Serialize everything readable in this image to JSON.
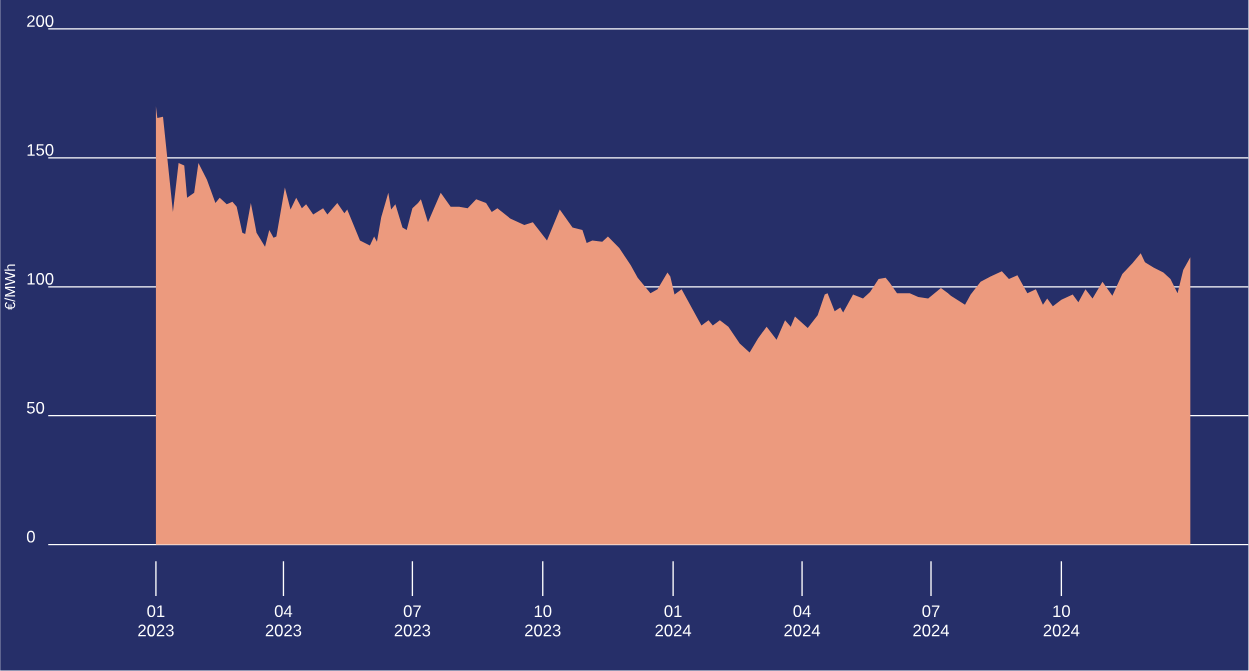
{
  "chart_data": {
    "type": "area",
    "ylabel": "€/MWh",
    "color": "#ec9a7e",
    "grid": "y",
    "ylim": [
      0,
      200
    ],
    "yticks": [
      0,
      50,
      100,
      150,
      200
    ],
    "xlim": [
      "2022-10-17",
      "2025-02-10"
    ],
    "xticks": [
      {
        "value": "2023-01-01",
        "label": "01 2023"
      },
      {
        "value": "2023-04-01",
        "label": "04 2023"
      },
      {
        "value": "2023-07-01",
        "label": "07 2023"
      },
      {
        "value": "2023-10-01",
        "label": "10 2023"
      },
      {
        "value": "2024-01-01",
        "label": "01 2024"
      },
      {
        "value": "2024-04-01",
        "label": "04 2024"
      },
      {
        "value": "2024-07-01",
        "label": "07 2024"
      },
      {
        "value": "2024-10-01",
        "label": "10 2024"
      }
    ],
    "x": [
      "2023-01-01",
      "2023-01-02",
      "2023-01-06",
      "2023-01-13",
      "2023-01-17",
      "2023-01-21",
      "2023-01-23",
      "2023-01-28",
      "2023-01-31",
      "2023-02-06",
      "2023-02-12",
      "2023-02-15",
      "2023-02-20",
      "2023-02-24",
      "2023-02-27",
      "2023-03-03",
      "2023-03-05",
      "2023-03-09",
      "2023-03-13",
      "2023-03-19",
      "2023-03-22",
      "2023-03-25",
      "2023-03-27",
      "2023-04-02",
      "2023-04-06",
      "2023-04-10",
      "2023-04-14",
      "2023-04-17",
      "2023-04-22",
      "2023-04-29",
      "2023-05-02",
      "2023-05-09",
      "2023-05-14",
      "2023-05-16",
      "2023-05-25",
      "2023-06-01",
      "2023-06-04",
      "2023-06-06",
      "2023-06-09",
      "2023-06-14",
      "2023-06-16",
      "2023-06-19",
      "2023-06-24",
      "2023-06-27",
      "2023-07-01",
      "2023-07-05",
      "2023-07-07",
      "2023-07-12",
      "2023-07-21",
      "2023-07-28",
      "2023-08-03",
      "2023-08-09",
      "2023-08-15",
      "2023-08-22",
      "2023-08-26",
      "2023-08-30",
      "2023-09-08",
      "2023-09-18",
      "2023-09-24",
      "2023-10-04",
      "2023-10-13",
      "2023-10-22",
      "2023-10-29",
      "2023-11-01",
      "2023-11-05",
      "2023-11-12",
      "2023-11-16",
      "2023-11-24",
      "2023-12-02",
      "2023-12-07",
      "2023-12-16",
      "2023-12-21",
      "2023-12-28",
      "2023-12-30",
      "2024-01-02",
      "2024-01-07",
      "2024-01-15",
      "2024-01-21",
      "2024-01-26",
      "2024-01-29",
      "2024-02-03",
      "2024-02-09",
      "2024-02-17",
      "2024-02-24",
      "2024-03-01",
      "2024-03-07",
      "2024-03-14",
      "2024-03-20",
      "2024-03-24",
      "2024-03-27",
      "2024-04-05",
      "2024-04-12",
      "2024-04-17",
      "2024-04-19",
      "2024-04-24",
      "2024-04-28",
      "2024-04-30",
      "2024-05-07",
      "2024-05-14",
      "2024-05-19",
      "2024-05-25",
      "2024-05-30",
      "2024-06-02",
      "2024-06-07",
      "2024-06-16",
      "2024-06-22",
      "2024-06-29",
      "2024-07-08",
      "2024-07-13",
      "2024-07-15",
      "2024-07-25",
      "2024-07-29",
      "2024-08-05",
      "2024-08-12",
      "2024-08-20",
      "2024-08-25",
      "2024-08-31",
      "2024-09-07",
      "2024-09-13",
      "2024-09-18",
      "2024-09-21",
      "2024-09-25",
      "2024-10-01",
      "2024-10-09",
      "2024-10-13",
      "2024-10-18",
      "2024-10-23",
      "2024-10-30",
      "2024-11-06",
      "2024-11-13",
      "2024-11-20",
      "2024-11-26",
      "2024-11-29",
      "2024-12-05",
      "2024-12-12",
      "2024-12-17",
      "2024-12-22",
      "2024-12-26",
      "2024-12-31"
    ],
    "values": [
      170,
      165.5,
      166,
      129,
      148,
      147,
      134.5,
      136.5,
      148,
      141.5,
      132.5,
      134.5,
      132,
      133,
      131,
      121,
      120.5,
      132.5,
      121,
      115.5,
      122,
      119,
      119.5,
      138.5,
      130,
      134.5,
      130.5,
      132,
      128,
      130.5,
      128,
      132.5,
      128.5,
      130,
      118,
      116,
      119.5,
      117.5,
      127,
      136.5,
      130,
      132,
      123,
      122,
      130.5,
      132.5,
      134,
      125,
      136.5,
      131,
      131,
      130.5,
      134,
      132.5,
      129,
      130.5,
      126.5,
      124,
      125,
      118,
      130,
      123,
      122,
      117,
      118,
      117.5,
      119.5,
      115,
      108.5,
      103.5,
      97.5,
      99,
      105.5,
      104,
      97,
      99,
      91,
      85,
      87,
      85,
      87,
      84.5,
      78,
      74.5,
      80,
      84.5,
      79.5,
      87,
      84.5,
      88.5,
      84,
      89,
      97,
      97.5,
      90.5,
      92,
      90,
      97,
      95.5,
      98,
      103,
      103.5,
      101.5,
      97.5,
      97.5,
      96,
      95.5,
      99.5,
      97.5,
      96.5,
      93,
      97,
      102,
      104,
      106,
      103,
      104.5,
      97.5,
      99,
      93,
      95.5,
      92.5,
      95,
      97,
      94,
      99,
      95.5,
      102,
      96.5,
      105,
      109,
      113,
      109.5,
      107.5,
      105.5,
      103,
      97.5,
      106.5,
      111.5
    ]
  }
}
